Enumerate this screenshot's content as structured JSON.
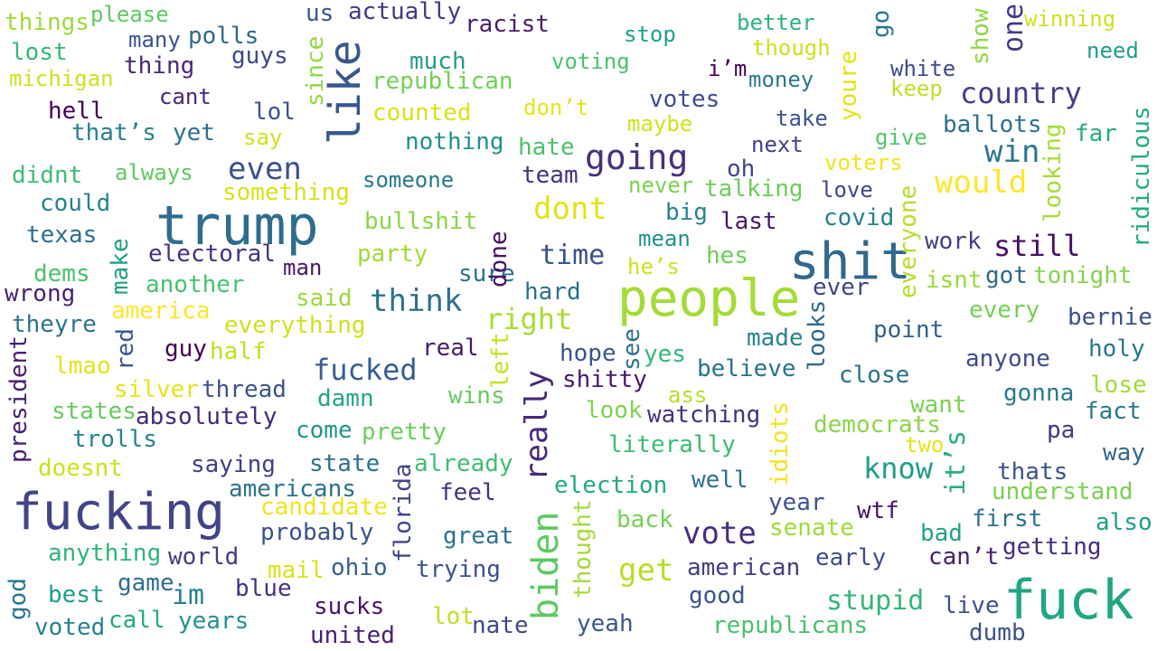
{
  "words": [
    {
      "text": "things",
      "color": "#a0da39"
    },
    {
      "text": "please",
      "color": "#5ec962"
    },
    {
      "text": "us",
      "color": "#39568c"
    },
    {
      "text": "actually",
      "color": "#443983"
    },
    {
      "text": "racist",
      "color": "#481f70"
    },
    {
      "text": "stop",
      "color": "#1fa187"
    },
    {
      "text": "better",
      "color": "#2db27d"
    },
    {
      "text": "winning",
      "color": "#d0e11c"
    },
    {
      "text": "lost",
      "color": "#35b779"
    },
    {
      "text": "many",
      "color": "#3b528b"
    },
    {
      "text": "polls",
      "color": "#31688e"
    },
    {
      "text": "guys",
      "color": "#3e4989"
    },
    {
      "text": "much",
      "color": "#1f9e89"
    },
    {
      "text": "voting",
      "color": "#4ac16d"
    },
    {
      "text": "i’m",
      "color": "#440154"
    },
    {
      "text": "though",
      "color": "#cde11d"
    },
    {
      "text": "need",
      "color": "#1f9e89"
    },
    {
      "text": "michigan",
      "color": "#cde11d"
    },
    {
      "text": "thing",
      "color": "#482878"
    },
    {
      "text": "republican",
      "color": "#73d056"
    },
    {
      "text": "money",
      "color": "#2a788e"
    },
    {
      "text": "white",
      "color": "#3e4a89"
    },
    {
      "text": "country",
      "color": "#433e85"
    },
    {
      "text": "hell",
      "color": "#440154"
    },
    {
      "text": "cant",
      "color": "#482677"
    },
    {
      "text": "lol",
      "color": "#3b528b"
    },
    {
      "text": "counted",
      "color": "#d8e219"
    },
    {
      "text": "don’t",
      "color": "#e5e419"
    },
    {
      "text": "votes",
      "color": "#3e4c8a"
    },
    {
      "text": "keep",
      "color": "#c2df23"
    },
    {
      "text": "that’s",
      "color": "#26828e"
    },
    {
      "text": "yet",
      "color": "#2c718e"
    },
    {
      "text": "say",
      "color": "#d0e11c"
    },
    {
      "text": "nothing",
      "color": "#20928c"
    },
    {
      "text": "hate",
      "color": "#4ac16d"
    },
    {
      "text": "maybe",
      "color": "#d2e21b"
    },
    {
      "text": "take",
      "color": "#3b528b"
    },
    {
      "text": "ballots",
      "color": "#2d708e"
    },
    {
      "text": "far",
      "color": "#25ab82"
    },
    {
      "text": "give",
      "color": "#54c568"
    },
    {
      "text": "next",
      "color": "#424086"
    },
    {
      "text": "win",
      "color": "#2a788e"
    },
    {
      "text": "going",
      "color": "#472f7d"
    },
    {
      "text": "didnt",
      "color": "#3dbc74"
    },
    {
      "text": "always",
      "color": "#5ec962"
    },
    {
      "text": "even",
      "color": "#3b528b"
    },
    {
      "text": "someone",
      "color": "#2a788e"
    },
    {
      "text": "team",
      "color": "#46327e"
    },
    {
      "text": "oh",
      "color": "#3f4788"
    },
    {
      "text": "voters",
      "color": "#f1e51d"
    },
    {
      "text": "something",
      "color": "#d8e219"
    },
    {
      "text": "never",
      "color": "#7ad151"
    },
    {
      "text": "talking",
      "color": "#6ccd5a"
    },
    {
      "text": "love",
      "color": "#3e4989"
    },
    {
      "text": "would",
      "color": "#fde725"
    },
    {
      "text": "could",
      "color": "#26828e"
    },
    {
      "text": "trump",
      "color": "#2f6c8e"
    },
    {
      "text": "dont",
      "color": "#e2e418"
    },
    {
      "text": "big",
      "color": "#26828e"
    },
    {
      "text": "last",
      "color": "#48186a"
    },
    {
      "text": "covid",
      "color": "#27808e"
    },
    {
      "text": "bullshit",
      "color": "#89d548"
    },
    {
      "text": "texas",
      "color": "#2d708e"
    },
    {
      "text": "mean",
      "color": "#21918c"
    },
    {
      "text": "work",
      "color": "#423f85"
    },
    {
      "text": "still",
      "color": "#471063"
    },
    {
      "text": "electoral",
      "color": "#46327e"
    },
    {
      "text": "party",
      "color": "#a2da37"
    },
    {
      "text": "time",
      "color": "#3b528b"
    },
    {
      "text": "hes",
      "color": "#6ccd5a"
    },
    {
      "text": "shit",
      "color": "#31688e"
    },
    {
      "text": "dems",
      "color": "#4ac16d"
    },
    {
      "text": "man",
      "color": "#481467"
    },
    {
      "text": "he’s",
      "color": "#cde11d"
    },
    {
      "text": "sure",
      "color": "#2c718e"
    },
    {
      "text": "got",
      "color": "#31688e"
    },
    {
      "text": "tonight",
      "color": "#84d44b"
    },
    {
      "text": "isnt",
      "color": "#9bd93c"
    },
    {
      "text": "wrong",
      "color": "#482173"
    },
    {
      "text": "another",
      "color": "#48c16e"
    },
    {
      "text": "ever",
      "color": "#414487"
    },
    {
      "text": "people",
      "color": "#a5db36"
    },
    {
      "text": "said",
      "color": "#9bd93c"
    },
    {
      "text": "think",
      "color": "#2d708e"
    },
    {
      "text": "hard",
      "color": "#2d708e"
    },
    {
      "text": "america",
      "color": "#fde725"
    },
    {
      "text": "theyre",
      "color": "#2c728e"
    },
    {
      "text": "everything",
      "color": "#d0e11c"
    },
    {
      "text": "right",
      "color": "#a8db34"
    },
    {
      "text": "point",
      "color": "#355f8d"
    },
    {
      "text": "every",
      "color": "#75d054"
    },
    {
      "text": "bernie",
      "color": "#3b528b"
    },
    {
      "text": "made",
      "color": "#26828e"
    },
    {
      "text": "guy",
      "color": "#440154"
    },
    {
      "text": "half",
      "color": "#c2df23"
    },
    {
      "text": "real",
      "color": "#481a6c"
    },
    {
      "text": "hope",
      "color": "#3a548c"
    },
    {
      "text": "yes",
      "color": "#35b779"
    },
    {
      "text": "holy",
      "color": "#2a788e"
    },
    {
      "text": "lmao",
      "color": "#e2e418"
    },
    {
      "text": "fucked",
      "color": "#355f8d"
    },
    {
      "text": "believe",
      "color": "#2c718e"
    },
    {
      "text": "close",
      "color": "#2c728e"
    },
    {
      "text": "anyone",
      "color": "#3e4c8a"
    },
    {
      "text": "silver",
      "color": "#e5e419"
    },
    {
      "text": "thread",
      "color": "#3b528b"
    },
    {
      "text": "damn",
      "color": "#21a685"
    },
    {
      "text": "shitty",
      "color": "#48186a"
    },
    {
      "text": "ass",
      "color": "#b5de2b"
    },
    {
      "text": "lose",
      "color": "#a2da37"
    },
    {
      "text": "want",
      "color": "#7ad151"
    },
    {
      "text": "gonna",
      "color": "#2a788e"
    },
    {
      "text": "fact",
      "color": "#2a788e"
    },
    {
      "text": "states",
      "color": "#65cb5e"
    },
    {
      "text": "absolutely",
      "color": "#482878"
    },
    {
      "text": "wins",
      "color": "#65cb5e"
    },
    {
      "text": "look",
      "color": "#7fd34e"
    },
    {
      "text": "watching",
      "color": "#46327e"
    },
    {
      "text": "democrats",
      "color": "#8bd646"
    },
    {
      "text": "trolls",
      "color": "#25838e"
    },
    {
      "text": "come",
      "color": "#1f968b"
    },
    {
      "text": "pretty",
      "color": "#6ccd5a"
    },
    {
      "text": "literally",
      "color": "#3dbc74"
    },
    {
      "text": "pa",
      "color": "#453581"
    },
    {
      "text": "two",
      "color": "#e5e419"
    },
    {
      "text": "way",
      "color": "#31688e"
    },
    {
      "text": "doesnt",
      "color": "#cde11d"
    },
    {
      "text": "saying",
      "color": "#424086"
    },
    {
      "text": "state",
      "color": "#2d708e"
    },
    {
      "text": "already",
      "color": "#40bd72"
    },
    {
      "text": "know",
      "color": "#1f9e89"
    },
    {
      "text": "thats",
      "color": "#3b528b"
    },
    {
      "text": "fucking",
      "color": "#414487"
    },
    {
      "text": "americans",
      "color": "#2c728e"
    },
    {
      "text": "feel",
      "color": "#46327e"
    },
    {
      "text": "election",
      "color": "#22a884"
    },
    {
      "text": "well",
      "color": "#2d708e"
    },
    {
      "text": "understand",
      "color": "#7ad151"
    },
    {
      "text": "candidate",
      "color": "#f1e51d"
    },
    {
      "text": "year",
      "color": "#3b528b"
    },
    {
      "text": "wtf",
      "color": "#481467"
    },
    {
      "text": "back",
      "color": "#75d054"
    },
    {
      "text": "first",
      "color": "#2c728e"
    },
    {
      "text": "probably",
      "color": "#3b528b"
    },
    {
      "text": "great",
      "color": "#2c728e"
    },
    {
      "text": "vote",
      "color": "#472f7d"
    },
    {
      "text": "senate",
      "color": "#a0da39"
    },
    {
      "text": "bad",
      "color": "#1fa187"
    },
    {
      "text": "also",
      "color": "#1f9e89"
    },
    {
      "text": "anything",
      "color": "#2eb37c"
    },
    {
      "text": "world",
      "color": "#443a83"
    },
    {
      "text": "getting",
      "color": "#472d7b"
    },
    {
      "text": "mail",
      "color": "#d8e219"
    },
    {
      "text": "ohio",
      "color": "#355f8d"
    },
    {
      "text": "trying",
      "color": "#3b528b"
    },
    {
      "text": "get",
      "color": "#b8de29"
    },
    {
      "text": "american",
      "color": "#433e85"
    },
    {
      "text": "early",
      "color": "#3d4e8a"
    },
    {
      "text": "can’t",
      "color": "#481f70"
    },
    {
      "text": "game",
      "color": "#2e6e8e"
    },
    {
      "text": "im",
      "color": "#26828e"
    },
    {
      "text": "blue",
      "color": "#46337f"
    },
    {
      "text": "best",
      "color": "#1f9e89"
    },
    {
      "text": "good",
      "color": "#3a548c"
    },
    {
      "text": "stupid",
      "color": "#35b779"
    },
    {
      "text": "live",
      "color": "#3b528b"
    },
    {
      "text": "fuck",
      "color": "#21a685"
    },
    {
      "text": "call",
      "color": "#24aa83"
    },
    {
      "text": "years",
      "color": "#21918c"
    },
    {
      "text": "sucks",
      "color": "#481467"
    },
    {
      "text": "lot",
      "color": "#c2df23"
    },
    {
      "text": "nate",
      "color": "#3e4989"
    },
    {
      "text": "yeah",
      "color": "#38598c"
    },
    {
      "text": "republicans",
      "color": "#4ac16d"
    },
    {
      "text": "voted",
      "color": "#26828e"
    },
    {
      "text": "united",
      "color": "#482173"
    },
    {
      "text": "dumb",
      "color": "#3b528b"
    },
    {
      "text": "like",
      "color": "#39568c"
    },
    {
      "text": "since",
      "color": "#90d743"
    },
    {
      "text": "show",
      "color": "#8fd744"
    },
    {
      "text": "go",
      "color": "#2a788e"
    },
    {
      "text": "one",
      "color": "#443983"
    },
    {
      "text": "youre",
      "color": "#e2e418"
    },
    {
      "text": "everyone",
      "color": "#b5de2b"
    },
    {
      "text": "looking",
      "color": "#a8db34"
    },
    {
      "text": "ridiculous",
      "color": "#24aa83"
    },
    {
      "text": "make",
      "color": "#1fa187"
    },
    {
      "text": "done",
      "color": "#471164"
    },
    {
      "text": "red",
      "color": "#39568c"
    },
    {
      "text": "left",
      "color": "#c8e020"
    },
    {
      "text": "see",
      "color": "#2c728e"
    },
    {
      "text": "looks",
      "color": "#31688e"
    },
    {
      "text": "president",
      "color": "#481f70"
    },
    {
      "text": "really",
      "color": "#472a7a"
    },
    {
      "text": "it’s",
      "color": "#29af7f"
    },
    {
      "text": "idiots",
      "color": "#f1e51d"
    },
    {
      "text": "florida",
      "color": "#414487"
    },
    {
      "text": "biden",
      "color": "#5ec962"
    },
    {
      "text": "thought",
      "color": "#a5db36"
    },
    {
      "text": "god",
      "color": "#2a788e"
    }
  ]
}
